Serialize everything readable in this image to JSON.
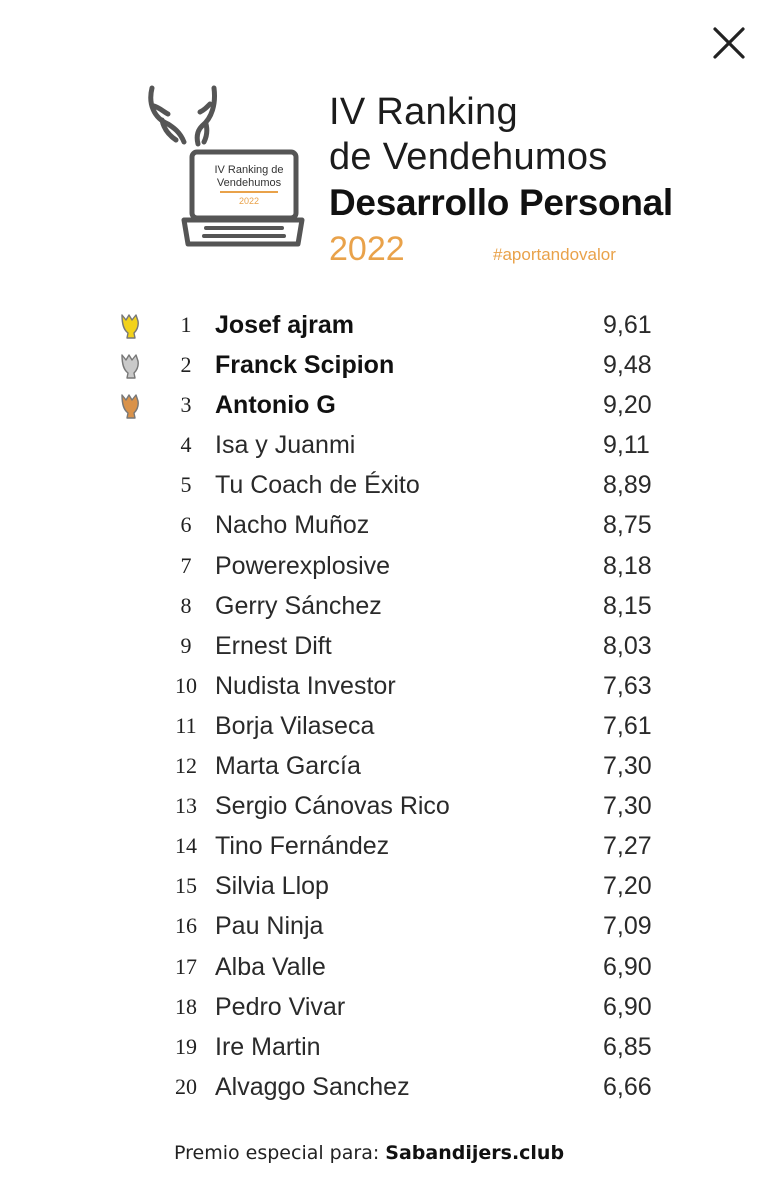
{
  "header": {
    "close_icon": "close-icon",
    "title_line1": "IV Ranking",
    "title_line2": "de Vendehumos",
    "title_line3": "Desarrollo Personal",
    "year": "2022",
    "hashtag": "#aportandovalor",
    "accent_color": "#e9a24a"
  },
  "logo": {
    "line1": "IV Ranking de",
    "line2": "Vendehumos",
    "year": "2022",
    "icon": "laptop-with-antlers-icon"
  },
  "ranking": [
    {
      "pos": "1",
      "name": "Josef ajram",
      "score": "9,61",
      "medal": "gold"
    },
    {
      "pos": "2",
      "name": "Franck Scipion",
      "score": "9,48",
      "medal": "silver"
    },
    {
      "pos": "3",
      "name": "Antonio G",
      "score": "9,20",
      "medal": "bronze"
    },
    {
      "pos": "4",
      "name": "Isa y Juanmi",
      "score": "9,11"
    },
    {
      "pos": "5",
      "name": "Tu Coach de Éxito",
      "score": "8,89"
    },
    {
      "pos": "6",
      "name": "Nacho Muñoz",
      "score": "8,75"
    },
    {
      "pos": "7",
      "name": "Powerexplosive",
      "score": "8,18"
    },
    {
      "pos": "8",
      "name": "Gerry Sánchez",
      "score": "8,15"
    },
    {
      "pos": "9",
      "name": "Ernest Dift",
      "score": "8,03"
    },
    {
      "pos": "10",
      "name": "Nudista Investor",
      "score": "7,63"
    },
    {
      "pos": "11",
      "name": "Borja Vilaseca",
      "score": "7,61"
    },
    {
      "pos": "12",
      "name": "Marta García",
      "score": "7,30"
    },
    {
      "pos": "13",
      "name": "Sergio Cánovas Rico",
      "score": "7,30"
    },
    {
      "pos": "14",
      "name": "Tino Fernández",
      "score": "7,27"
    },
    {
      "pos": "15",
      "name": "Silvia Llop",
      "score": "7,20"
    },
    {
      "pos": "16",
      "name": "Pau Ninja",
      "score": "7,09"
    },
    {
      "pos": "17",
      "name": "Alba Valle",
      "score": "6,90"
    },
    {
      "pos": "18",
      "name": "Pedro Vivar",
      "score": "6,90"
    },
    {
      "pos": "19",
      "name": "Ire Martin",
      "score": "6,85"
    },
    {
      "pos": "20",
      "name": "Alvaggo Sanchez",
      "score": "6,66"
    }
  ],
  "medal_colors": {
    "gold": "#f2d21b",
    "silver": "#c9c9c9",
    "bronze": "#d9924a"
  },
  "footer": {
    "prefix": "Premio especial para: ",
    "brand": "Sabandijers.club"
  }
}
